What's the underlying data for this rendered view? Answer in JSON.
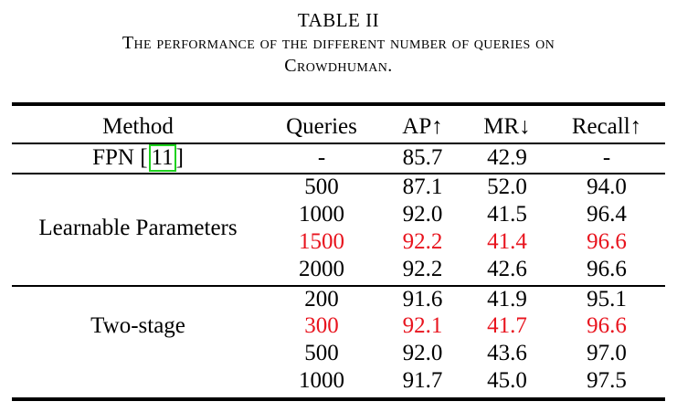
{
  "caption": {
    "label": "TABLE II",
    "line1": "The performance of the different number of queries on",
    "line2": "Crowdhuman."
  },
  "colors": {
    "highlight": "#e8141e",
    "citation_box": "#1fd21f"
  },
  "table": {
    "headers": {
      "method": "Method",
      "queries": "Queries",
      "ap": "AP↑",
      "mr": "MR↓",
      "recall": "Recall↑"
    },
    "fpn": {
      "method_prefix": "FPN [",
      "citation": "11",
      "method_suffix": "]",
      "queries": "-",
      "ap": "85.7",
      "mr": "42.9",
      "recall": "-"
    },
    "learnable": {
      "label": "Learnable Parameters",
      "rows": [
        {
          "queries": "500",
          "ap": "87.1",
          "mr": "52.0",
          "recall": "94.0"
        },
        {
          "queries": "1000",
          "ap": "92.0",
          "mr": "41.5",
          "recall": "96.4"
        },
        {
          "queries": "1500",
          "ap": "92.2",
          "mr": "41.4",
          "recall": "96.6"
        },
        {
          "queries": "2000",
          "ap": "92.2",
          "mr": "42.6",
          "recall": "96.6"
        }
      ]
    },
    "twostage": {
      "label": "Two-stage",
      "rows": [
        {
          "queries": "200",
          "ap": "91.6",
          "mr": "41.9",
          "recall": "95.1"
        },
        {
          "queries": "300",
          "ap": "92.1",
          "mr": "41.7",
          "recall": "96.6"
        },
        {
          "queries": "500",
          "ap": "92.0",
          "mr": "43.6",
          "recall": "97.0"
        },
        {
          "queries": "1000",
          "ap": "91.7",
          "mr": "45.0",
          "recall": "97.5"
        }
      ]
    }
  }
}
